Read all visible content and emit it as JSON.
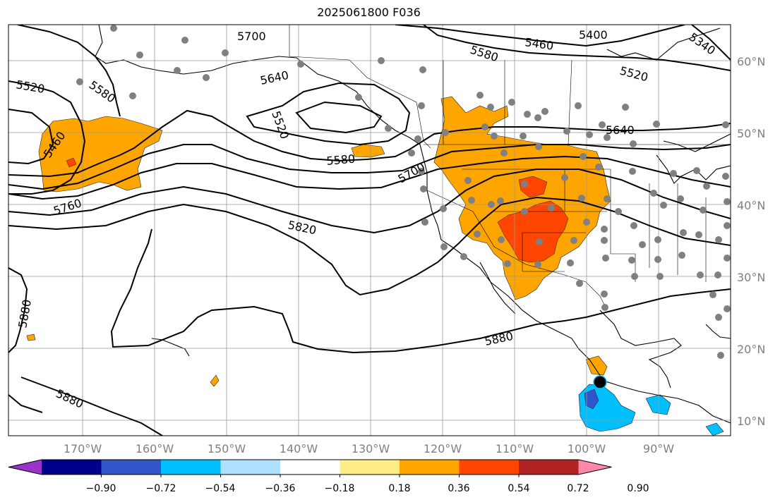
{
  "title": "2025061800 F036",
  "lat_labels": [
    "60°N",
    "50°N",
    "40°N",
    "30°N",
    "20°N",
    "10°N"
  ],
  "lon_labels": [
    "170°W",
    "160°W",
    "150°W",
    "140°W",
    "130°W",
    "120°W",
    "110°W",
    "100°W",
    "90°W"
  ],
  "contour_labels": [
    {
      "id": "5700-a",
      "text": "5700"
    },
    {
      "id": "5460-ne",
      "text": "5460"
    },
    {
      "id": "5400",
      "text": "5400"
    },
    {
      "id": "5340",
      "text": "5340"
    },
    {
      "id": "5580-ne",
      "text": "5580"
    },
    {
      "id": "5520-ne",
      "text": "5520"
    },
    {
      "id": "5640-a",
      "text": "5640"
    },
    {
      "id": "5520-w",
      "text": "5520"
    },
    {
      "id": "5580-w",
      "text": "5580"
    },
    {
      "id": "5520-c",
      "text": "5520"
    },
    {
      "id": "5460-w",
      "text": "5460"
    },
    {
      "id": "5580-c",
      "text": "5580"
    },
    {
      "id": "5700-c",
      "text": "5700"
    },
    {
      "id": "5640-e",
      "text": "5640"
    },
    {
      "id": "5760",
      "text": "5760"
    },
    {
      "id": "5820",
      "text": "5820"
    },
    {
      "id": "5880-w",
      "text": "5880"
    },
    {
      "id": "5880-c",
      "text": "5880"
    },
    {
      "id": "5880-sw",
      "text": "5880"
    }
  ],
  "colorbar": {
    "ticks": [
      "−0.90",
      "−0.72",
      "−0.54",
      "−0.36",
      "−0.18",
      "0.18",
      "0.36",
      "0.54",
      "0.72",
      "0.90"
    ],
    "colors": [
      "#9933cc",
      "#00008b",
      "#3355cc",
      "#00bfff",
      "#aee1ff",
      "#ffffff",
      "#ffee88",
      "#ffa500",
      "#ff4500",
      "#b22222",
      "#ff88aa"
    ]
  },
  "colors": {
    "orange": "#ffa500",
    "red_orange": "#ff4500",
    "sky_blue": "#00bfff",
    "med_blue": "#3355cc",
    "dots": "#808080"
  }
}
